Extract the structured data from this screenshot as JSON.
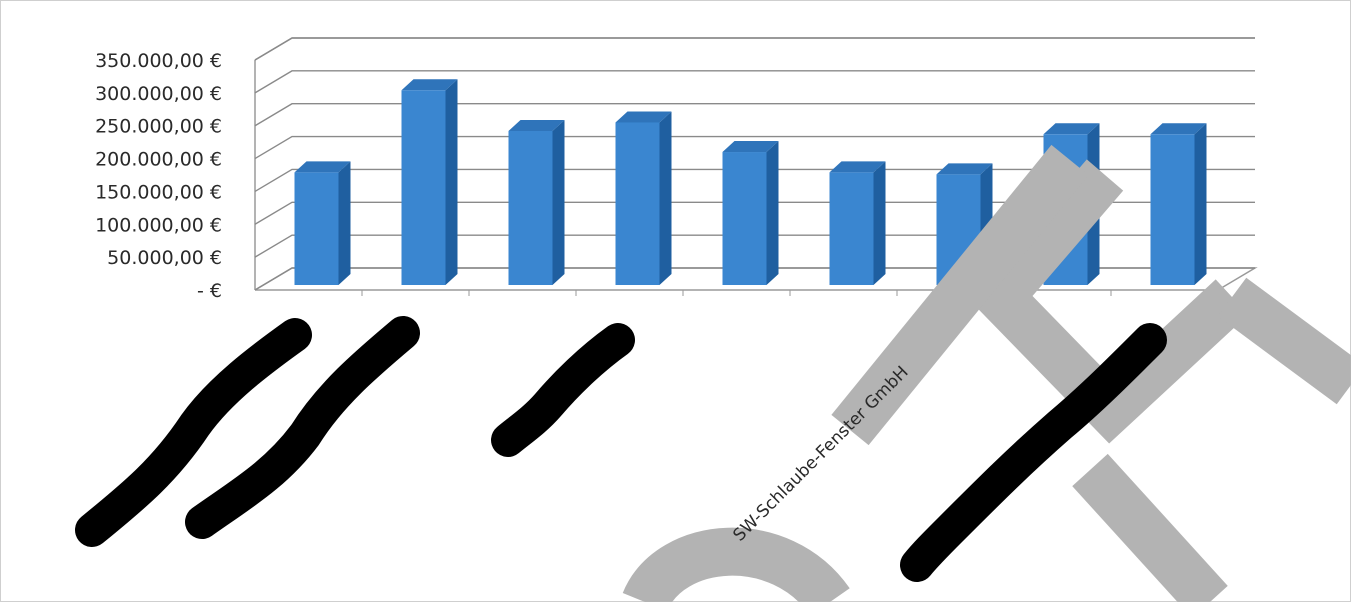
{
  "chart_data": {
    "type": "bar",
    "style": "3d-column",
    "categories": [
      "",
      "",
      "",
      "",
      "",
      "",
      "",
      "",
      ""
    ],
    "values": [
      182000,
      307000,
      245000,
      258000,
      213000,
      182000,
      179000,
      240000,
      240000
    ],
    "title": "",
    "xlabel": "",
    "ylabel": "",
    "ylim": [
      0,
      350000
    ],
    "yticks": [
      "-  €",
      "50.000,00 €",
      "100.000,00 €",
      "150.000,00 €",
      "200.000,00 €",
      "250.000,00 €",
      "300.000,00 €",
      "350.000,00 €"
    ],
    "grid": true,
    "legend": "none",
    "x_labels_visible": [
      "SW-Schlaube-Fenster GmbH"
    ],
    "colors": {
      "bar_front": "#3a86d0",
      "bar_side": "#1f5fa0",
      "bar_top": "#2f74ba",
      "grid": "#8a8a8a"
    }
  },
  "overlays": {
    "redaction_color": "#000000",
    "watermark_color": "#b5b5b5",
    "redaction_marks": [
      "redaction-stroke-1",
      "redaction-stroke-2",
      "redaction-stroke-3",
      "redaction-stroke-4"
    ]
  }
}
